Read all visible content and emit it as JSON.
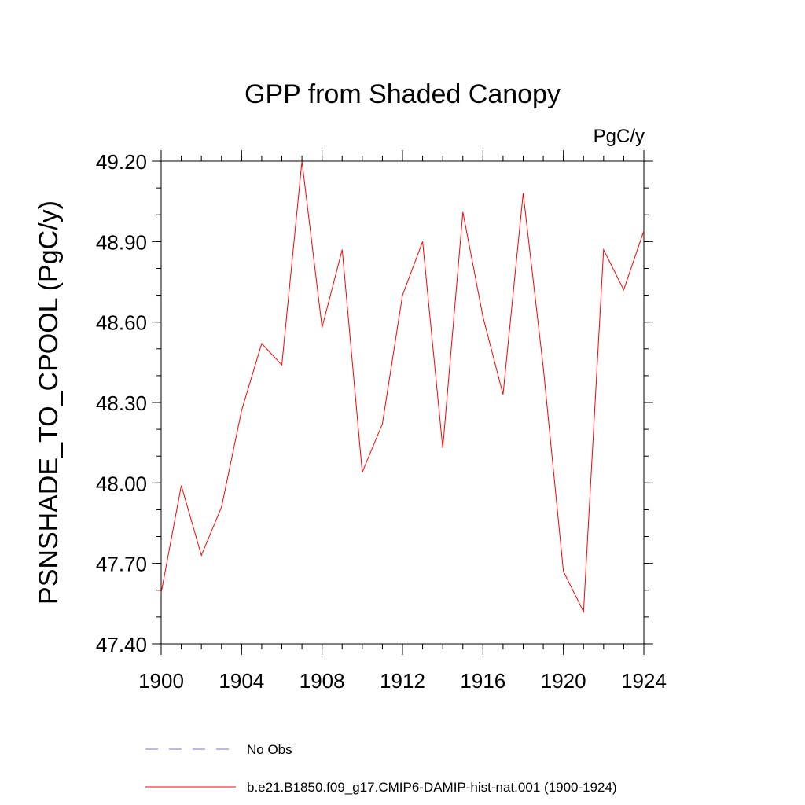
{
  "chart_data": {
    "type": "line",
    "title": "GPP from Shaded Canopy",
    "units": "PgC/y",
    "ylabel": "PSNSHADE_TO_CPOOL  (PgC/y)",
    "xlabel": "",
    "xlim": [
      1900,
      1924
    ],
    "ylim": [
      47.4,
      49.2
    ],
    "xticks": [
      "1900",
      "1904",
      "1908",
      "1912",
      "1916",
      "1920",
      "1924"
    ],
    "yticks": [
      "47.40",
      "47.70",
      "48.00",
      "48.30",
      "48.60",
      "48.90",
      "49.20"
    ],
    "grid": false,
    "legend_position": "bottom",
    "series": [
      {
        "name": "b.e21.B1850.f09_g17.CMIP6-DAMIP-hist-nat.001 (1900-1924)",
        "color": "#ff0000",
        "style": "solid",
        "x": [
          1900,
          1901,
          1902,
          1903,
          1904,
          1905,
          1906,
          1907,
          1908,
          1909,
          1910,
          1911,
          1912,
          1913,
          1914,
          1915,
          1916,
          1917,
          1918,
          1919,
          1920,
          1921,
          1922,
          1923,
          1924
        ],
        "values": [
          47.59,
          47.99,
          47.73,
          47.91,
          48.27,
          48.52,
          48.44,
          49.2,
          48.58,
          48.87,
          48.04,
          48.22,
          48.7,
          48.9,
          48.13,
          49.01,
          48.62,
          48.33,
          49.08,
          48.43,
          47.67,
          47.52,
          48.87,
          48.72,
          48.94
        ]
      }
    ],
    "legend": [
      {
        "label": "No Obs",
        "color": "#7777cc",
        "style": "dashed"
      },
      {
        "label": "b.e21.B1850.f09_g17.CMIP6-DAMIP-hist-nat.001 (1900-1924)",
        "color": "#ff0000",
        "style": "solid"
      }
    ]
  }
}
